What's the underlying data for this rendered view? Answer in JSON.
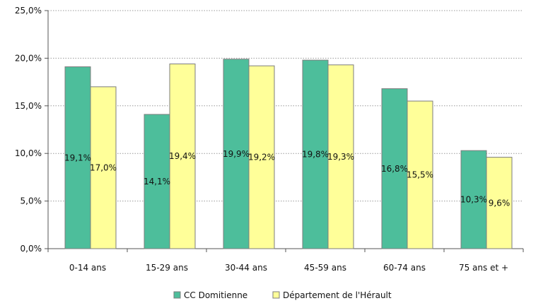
{
  "chart_data": {
    "type": "bar",
    "title": "",
    "xlabel": "",
    "ylabel": "",
    "ylim": [
      0,
      25
    ],
    "y_ticks": [
      "0,0%",
      "5,0%",
      "10,0%",
      "15,0%",
      "20,0%",
      "25,0%"
    ],
    "grid": "horizontal-dotted",
    "legend_position": "bottom",
    "categories": [
      "0-14 ans",
      "15-29 ans",
      "30-44 ans",
      "45-59 ans",
      "60-74 ans",
      "75 ans et +"
    ],
    "series": [
      {
        "name": "CC Domitienne",
        "color": "#4dbe9b",
        "values": [
          19.1,
          14.1,
          19.9,
          19.8,
          16.8,
          10.3
        ],
        "labels": [
          "19,1%",
          "14,1%",
          "19,9%",
          "19,8%",
          "16,8%",
          "10,3%"
        ]
      },
      {
        "name": "Département de l'Hérault",
        "color": "#ffff99",
        "values": [
          17.0,
          19.4,
          19.2,
          19.3,
          15.5,
          9.6
        ],
        "labels": [
          "17,0%",
          "19,4%",
          "19,2%",
          "19,3%",
          "15,5%",
          "9,6%"
        ]
      }
    ]
  }
}
